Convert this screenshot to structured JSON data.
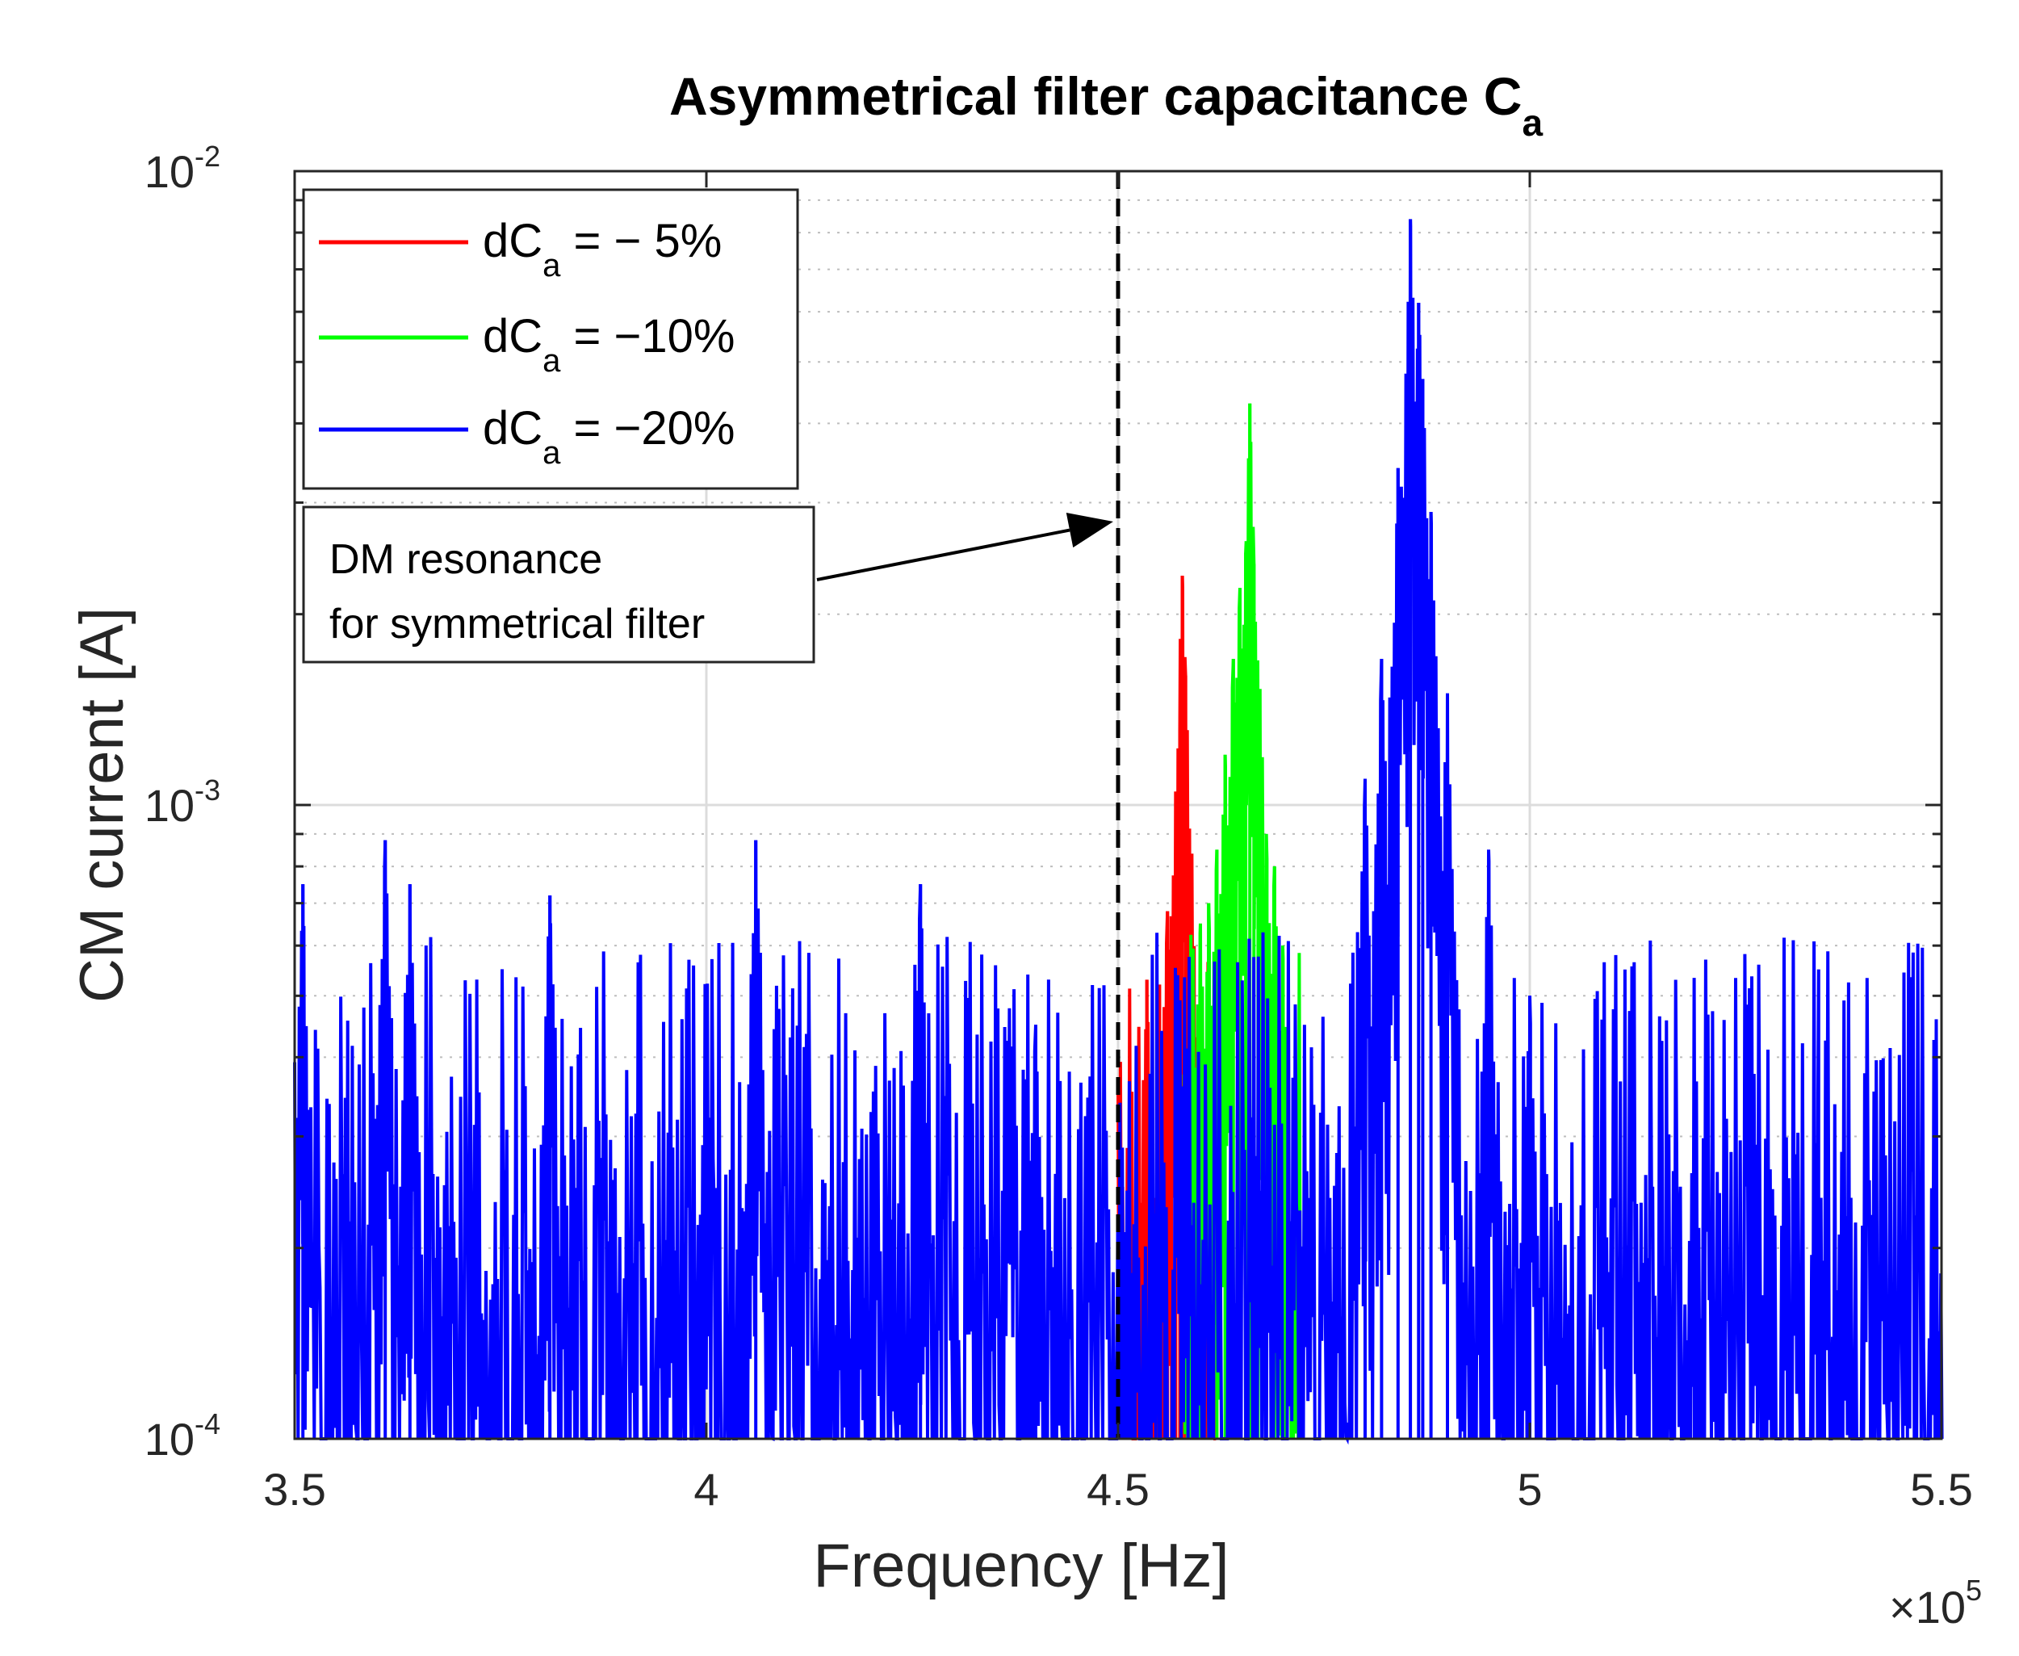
{
  "chart_data": {
    "type": "line",
    "title": "Asymmetrical filter capacitance C",
    "title_subscript": "a",
    "xlabel": "Frequency   [Hz]",
    "ylabel": "CM current   [A]",
    "x_multiplier": "×10",
    "x_multiplier_exp": "5",
    "x_units_scale": 100000,
    "xlim": [
      3.5,
      5.5
    ],
    "ylim": [
      0.0001,
      0.01
    ],
    "yscale": "log",
    "grid": true,
    "x_ticks": [
      3.5,
      4,
      4.5,
      5,
      5.5
    ],
    "x_tick_labels": [
      "3.5",
      "4",
      "4.5",
      "5",
      "5.5"
    ],
    "y_ticks": [
      0.0001,
      0.001,
      0.01
    ],
    "y_tick_labels": [
      {
        "base": "10",
        "exp": "-4"
      },
      {
        "base": "10",
        "exp": "-3"
      },
      {
        "base": "10",
        "exp": "-2"
      }
    ],
    "legend_position": "top-left",
    "series": [
      {
        "name": "dCa = −5%",
        "legend_prefix": "dC",
        "legend_sub": "a",
        "legend_suffix": " = − 5%",
        "color": "#ff0000",
        "peaks": [
          {
            "x": 4.535,
            "y": 0.00053
          },
          {
            "x": 4.55,
            "y": 0.00045
          },
          {
            "x": 4.56,
            "y": 0.00068
          },
          {
            "x": 4.565,
            "y": 0.0006
          },
          {
            "x": 4.57,
            "y": 0.00105
          },
          {
            "x": 4.575,
            "y": 0.0013
          },
          {
            "x": 4.578,
            "y": 0.0023
          },
          {
            "x": 4.582,
            "y": 0.0016
          },
          {
            "x": 4.587,
            "y": 0.00075
          },
          {
            "x": 4.592,
            "y": 0.00048
          }
        ]
      },
      {
        "name": "dCa = −10%",
        "legend_prefix": "dC",
        "legend_sub": "a",
        "legend_suffix": " = −10%",
        "color": "#00ff00",
        "peaks": [
          {
            "x": 4.6,
            "y": 0.00065
          },
          {
            "x": 4.61,
            "y": 0.0007
          },
          {
            "x": 4.62,
            "y": 0.00085
          },
          {
            "x": 4.63,
            "y": 0.0012
          },
          {
            "x": 4.64,
            "y": 0.0017
          },
          {
            "x": 4.648,
            "y": 0.0022
          },
          {
            "x": 4.655,
            "y": 0.0025
          },
          {
            "x": 4.66,
            "y": 0.0043
          },
          {
            "x": 4.665,
            "y": 0.0024
          },
          {
            "x": 4.67,
            "y": 0.0011
          },
          {
            "x": 4.68,
            "y": 0.0009
          },
          {
            "x": 4.69,
            "y": 0.0008
          },
          {
            "x": 4.7,
            "y": 0.0006
          }
        ]
      },
      {
        "name": "dCa = −20%",
        "legend_prefix": "dC",
        "legend_sub": "a",
        "legend_suffix": " = −20%",
        "color": "#0000ff",
        "peaks": [
          {
            "x": 3.51,
            "y": 0.00075
          },
          {
            "x": 3.61,
            "y": 0.00088
          },
          {
            "x": 3.64,
            "y": 0.00075
          },
          {
            "x": 3.81,
            "y": 0.00072
          },
          {
            "x": 4.06,
            "y": 0.00088
          },
          {
            "x": 4.26,
            "y": 0.00075
          },
          {
            "x": 4.4,
            "y": 0.00045
          },
          {
            "x": 4.8,
            "y": 0.0011
          },
          {
            "x": 4.82,
            "y": 0.0017
          },
          {
            "x": 4.84,
            "y": 0.0034
          },
          {
            "x": 4.855,
            "y": 0.0084
          },
          {
            "x": 4.865,
            "y": 0.0062
          },
          {
            "x": 4.87,
            "y": 0.0047
          },
          {
            "x": 4.88,
            "y": 0.0029
          },
          {
            "x": 4.9,
            "y": 0.0015
          },
          {
            "x": 4.95,
            "y": 0.00085
          },
          {
            "x": 5.0,
            "y": 0.0005
          },
          {
            "x": 5.2,
            "y": 0.00034
          },
          {
            "x": 5.35,
            "y": 0.00035
          }
        ]
      }
    ],
    "vline": {
      "x": 4.5,
      "style": "dashed",
      "color": "#000000"
    },
    "annotation": {
      "lines": [
        "DM resonance",
        "for symmetrical filter"
      ],
      "arrow_target_x": 4.5,
      "arrow_target_y": 0.0028
    }
  }
}
